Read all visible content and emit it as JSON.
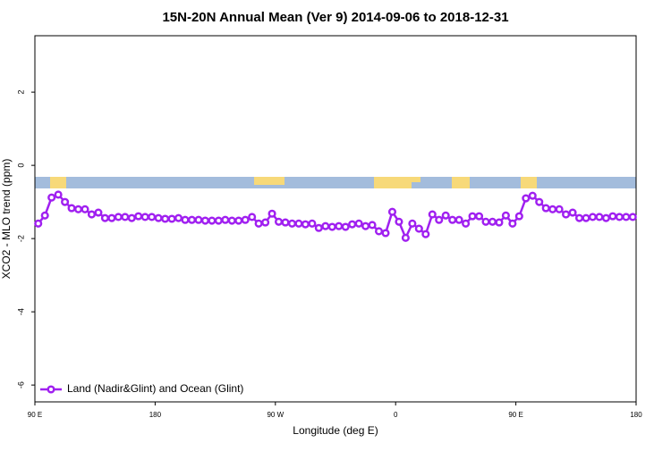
{
  "chart_data": {
    "type": "line",
    "title": "15N-20N Annual Mean (Ver 9)   2014-09-06 to 2018-12-31",
    "x_label": "Longitude (deg E)",
    "y_label": "XCO2 - MLO trend (ppm)",
    "xlim": [
      90,
      540
    ],
    "ylim": [
      -6.46,
      3.54
    ],
    "xticks": [
      {
        "value": 90,
        "label": "90 E"
      },
      180,
      {
        "value": 270,
        "label": "90 W"
      },
      {
        "value": 360,
        "label": "0"
      },
      {
        "value": 450,
        "label": "90 E"
      },
      {
        "value": 540,
        "label": "180"
      }
    ],
    "yticks": [
      -6,
      -4,
      -2,
      0,
      2
    ],
    "legend": "bottom-left",
    "x": [
      92.5,
      97.5,
      102.5,
      107.5,
      112.5,
      117.5,
      122.5,
      127.5,
      132.5,
      137.5,
      142.5,
      147.5,
      152.5,
      157.5,
      162.5,
      167.5,
      172.5,
      177.5,
      182.5,
      187.5,
      192.5,
      197.5,
      202.5,
      207.5,
      212.5,
      217.5,
      222.5,
      227.5,
      232.5,
      237.5,
      242.5,
      247.5,
      252.5,
      257.5,
      262.5,
      267.5,
      272.5,
      277.5,
      282.5,
      287.5,
      292.5,
      297.5,
      302.5,
      307.5,
      312.5,
      317.5,
      322.5,
      327.5,
      332.5,
      337.5,
      342.5,
      347.5,
      352.5,
      357.5,
      362.5,
      367.5,
      372.5,
      377.5,
      382.5,
      387.5,
      392.5,
      397.5,
      402.5,
      407.5,
      412.5,
      417.5,
      422.5,
      427.5,
      432.5,
      437.5,
      442.5,
      447.5,
      452.5,
      457.5,
      462.5,
      467.5,
      472.5,
      477.5,
      482.5,
      487.5,
      492.5,
      497.5,
      502.5,
      507.5,
      512.5,
      517.5,
      522.5,
      527.5,
      532.5,
      537.5
    ],
    "series": [
      {
        "name": "Land (Nadir&Glint) and Ocean (Glint)",
        "color": "#a020f0",
        "values": [
          -1.59,
          -1.37,
          -0.88,
          -0.8,
          -1.0,
          -1.17,
          -1.2,
          -1.2,
          -1.34,
          -1.29,
          -1.44,
          -1.44,
          -1.41,
          -1.41,
          -1.44,
          -1.39,
          -1.41,
          -1.41,
          -1.44,
          -1.46,
          -1.46,
          -1.44,
          -1.49,
          -1.49,
          -1.49,
          -1.51,
          -1.51,
          -1.51,
          -1.49,
          -1.51,
          -1.51,
          -1.49,
          -1.41,
          -1.59,
          -1.56,
          -1.32,
          -1.54,
          -1.56,
          -1.59,
          -1.59,
          -1.61,
          -1.59,
          -1.71,
          -1.66,
          -1.68,
          -1.66,
          -1.68,
          -1.61,
          -1.59,
          -1.66,
          -1.63,
          -1.8,
          -1.85,
          -1.27,
          -1.54,
          -1.98,
          -1.59,
          -1.73,
          -1.88,
          -1.34,
          -1.49,
          -1.37,
          -1.49,
          -1.49,
          -1.59,
          -1.39,
          -1.39,
          -1.54,
          -1.54,
          -1.56,
          -1.37,
          -1.59,
          -1.39,
          -0.9,
          -0.83,
          -1.0,
          -1.17,
          -1.2,
          -1.2,
          -1.34,
          -1.29,
          -1.44,
          -1.44,
          -1.41,
          -1.41,
          -1.44,
          -1.39,
          -1.41,
          -1.41,
          -1.41
        ]
      }
    ]
  }
}
